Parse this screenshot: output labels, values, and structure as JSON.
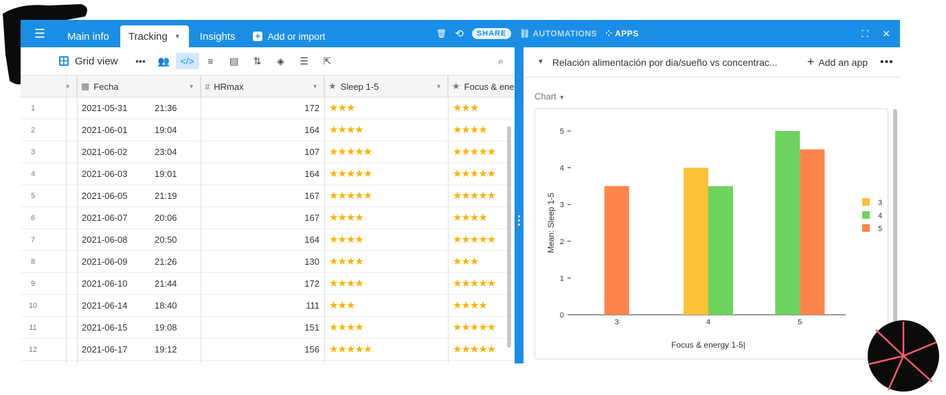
{
  "topbar": {
    "tabs": [
      "Main info",
      "Tracking",
      "Insights"
    ],
    "active_tab": "Tracking",
    "add_import": "Add or import",
    "share": "SHARE",
    "automations": "AUTOMATIONS",
    "apps": "APPS",
    "color": "#1a8ee6"
  },
  "toolbar": {
    "view_name": "Grid view",
    "icons": [
      "more-icon",
      "people-icon",
      "code-icon",
      "filter-icon",
      "group-icon",
      "sort-icon",
      "paint-icon",
      "row-height-icon",
      "share-view-icon"
    ]
  },
  "grid": {
    "columns": {
      "fecha": "Fecha",
      "hrmax": "HRmax",
      "sleep": "Sleep 1-5",
      "focus": "Focus & ene"
    },
    "rows": [
      {
        "n": "1",
        "date": "2021-05-31",
        "time": "21:36",
        "hr": "172",
        "sleep": "★★★",
        "focus": "★★★"
      },
      {
        "n": "2",
        "date": "2021-06-01",
        "time": "19:04",
        "hr": "164",
        "sleep": "★★★★",
        "focus": "★★★★"
      },
      {
        "n": "3",
        "date": "2021-06-02",
        "time": "23:04",
        "hr": "107",
        "sleep": "★★★★★",
        "focus": "★★★★★"
      },
      {
        "n": "4",
        "date": "2021-06-03",
        "time": "19:01",
        "hr": "164",
        "sleep": "★★★★★",
        "focus": "★★★★★"
      },
      {
        "n": "5",
        "date": "2021-06-05",
        "time": "21:19",
        "hr": "167",
        "sleep": "★★★★★",
        "focus": "★★★★★"
      },
      {
        "n": "6",
        "date": "2021-06-07",
        "time": "20:06",
        "hr": "167",
        "sleep": "★★★★",
        "focus": "★★★★"
      },
      {
        "n": "7",
        "date": "2021-06-08",
        "time": "20:50",
        "hr": "164",
        "sleep": "★★★★",
        "focus": "★★★★★"
      },
      {
        "n": "8",
        "date": "2021-06-09",
        "time": "21:26",
        "hr": "130",
        "sleep": "★★★★",
        "focus": "★★★"
      },
      {
        "n": "9",
        "date": "2021-06-10",
        "time": "21:44",
        "hr": "172",
        "sleep": "★★★★",
        "focus": "★★★★★"
      },
      {
        "n": "10",
        "date": "2021-06-14",
        "time": "18:40",
        "hr": "111",
        "sleep": "★★★",
        "focus": "★★★★"
      },
      {
        "n": "11",
        "date": "2021-06-15",
        "time": "19:08",
        "hr": "151",
        "sleep": "★★★★",
        "focus": "★★★★★"
      },
      {
        "n": "12",
        "date": "2021-06-17",
        "time": "19:12",
        "hr": "156",
        "sleep": "★★★★★",
        "focus": "★★★★★"
      }
    ]
  },
  "app_panel": {
    "title": "Relación alimentación por dia/sueño vs concentrac...",
    "add_app": "Add an app",
    "chart_selector": "Chart"
  },
  "chart_data": {
    "type": "bar",
    "categories": [
      "3",
      "4",
      "5"
    ],
    "series": [
      {
        "name": "3",
        "color": "#fbc137",
        "values": [
          null,
          4,
          null
        ]
      },
      {
        "name": "4",
        "color": "#6dd35e",
        "values": [
          null,
          3.5,
          5
        ]
      },
      {
        "name": "5",
        "color": "#ff8449",
        "values": [
          3.5,
          null,
          4.5
        ]
      }
    ],
    "xlabel": "Focus & energy 1-5|",
    "ylabel": "Mean: Sleep 1-5",
    "yticks": [
      "0",
      "1",
      "2",
      "3",
      "4",
      "5"
    ],
    "ylim": [
      0,
      5
    ],
    "legend": "right",
    "grid": false
  }
}
